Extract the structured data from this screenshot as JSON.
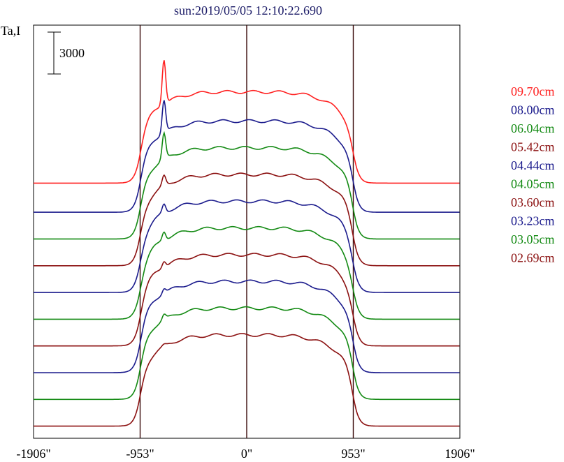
{
  "chart_data": {
    "type": "line",
    "title": "sun:2019/05/05 12:10:22.690",
    "ylabel": "Ta,I",
    "scale_bar_label": "3000",
    "x_ticks": [
      "-1906\"",
      "-953\"",
      "0\"",
      "953\"",
      "1906\""
    ],
    "x_tick_values": [
      -1906,
      -953,
      0,
      953,
      1906
    ],
    "xlim": [
      -1906,
      1906
    ],
    "ylim": [
      0,
      34000
    ],
    "vertical_markers": [
      -953,
      0,
      953
    ],
    "legend_position": "right",
    "grid": false,
    "series": [
      {
        "name": "09.70cm",
        "color": "#ff2020",
        "base": 21000,
        "disk_level": 7500,
        "peak": 11200
      },
      {
        "name": "08.00cm",
        "color": "#1a1a8c",
        "base": 18600,
        "disk_level": 7500,
        "peak": 10200
      },
      {
        "name": "06.04cm",
        "color": "#138a13",
        "base": 16400,
        "disk_level": 7500,
        "peak": 9600
      },
      {
        "name": "05.42cm",
        "color": "#8b1010",
        "base": 14200,
        "disk_level": 7500,
        "peak": 8300
      },
      {
        "name": "04.44cm",
        "color": "#1a1a8c",
        "base": 12000,
        "disk_level": 7500,
        "peak": 8200
      },
      {
        "name": "04.05cm",
        "color": "#138a13",
        "base": 9800,
        "disk_level": 7500,
        "peak": 8200
      },
      {
        "name": "03.60cm",
        "color": "#8b1010",
        "base": 7600,
        "disk_level": 7500,
        "peak": 8000
      },
      {
        "name": "03.23cm",
        "color": "#1a1a8c",
        "base": 5400,
        "disk_level": 7500,
        "peak": 7900
      },
      {
        "name": "03.05cm",
        "color": "#138a13",
        "base": 3200,
        "disk_level": 7500,
        "peak": 7900
      },
      {
        "name": "02.69cm",
        "color": "#8b1010",
        "base": 1000,
        "disk_level": 7500,
        "peak": 7600
      }
    ]
  }
}
